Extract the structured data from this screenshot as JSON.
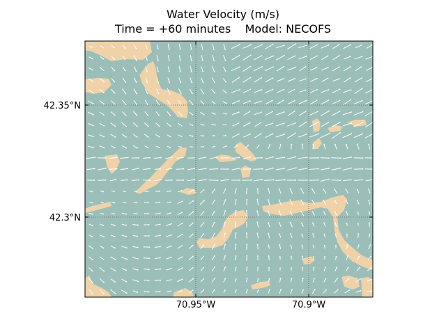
{
  "figure": {
    "title": "Water Velocity (m/s)",
    "subtitle_time": "Time = +60 minutes",
    "subtitle_model": "Model: NECOFS"
  },
  "axes": {
    "y_ticks": [
      {
        "label": "42.35°N",
        "value": 42.35
      },
      {
        "label": "42.3°N",
        "value": 42.3
      }
    ],
    "x_ticks": [
      {
        "label": "70.95°W",
        "value": -70.95
      },
      {
        "label": "70.9°W",
        "value": -70.9
      }
    ],
    "grid": true,
    "grid_style": "dotted"
  },
  "colors": {
    "water": "#9bbfb8",
    "land": "#f0d2a8",
    "arrows": "#ffffff",
    "grid": "#707070",
    "frame": "#000000"
  },
  "layers": [
    "water",
    "land",
    "velocity-arrows",
    "graticule"
  ]
}
